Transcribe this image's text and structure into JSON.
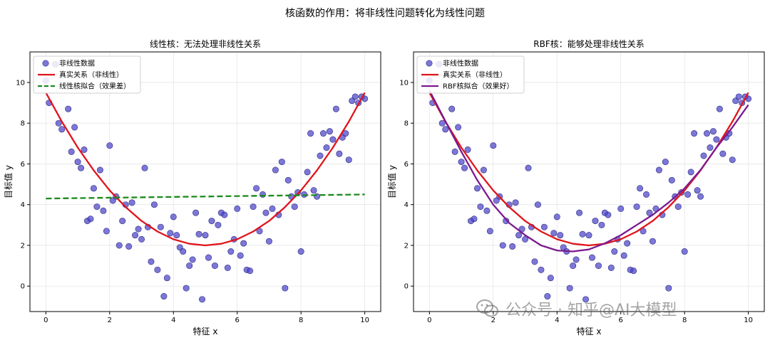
{
  "figure": {
    "suptitle": "核函数的作用：将非线性问题转化为线性问题"
  },
  "watermark": {
    "text": "公众号 · 知乎@AI大模型"
  },
  "colors": {
    "points": "#4b43c9",
    "true_curve": "#e0141b",
    "linear_fit": "#1a8a1a",
    "rbf_fit": "#7b1a8f",
    "grid": "#e6e6e6"
  },
  "chart_data": [
    {
      "type": "scatter",
      "title": "线性核：无法处理非线性关系",
      "xlabel": "特征 x",
      "ylabel": "目标值 y",
      "xlim": [
        -0.5,
        10.5
      ],
      "ylim": [
        -1.25,
        11.5
      ],
      "xticks": [
        0,
        2,
        4,
        6,
        8,
        10
      ],
      "yticks": [
        0,
        2,
        4,
        6,
        8,
        10
      ],
      "grid": true,
      "legend_position": "top-left",
      "legend": [
        "非线性数据",
        "真实关系（非线性）",
        "线性核拟合（效果差）"
      ],
      "scatter_points": [
        [
          0.0,
          10.1
        ],
        [
          0.1,
          9.0
        ],
        [
          0.3,
          10.9
        ],
        [
          0.4,
          8.0
        ],
        [
          0.5,
          7.7
        ],
        [
          0.7,
          8.7
        ],
        [
          0.8,
          6.6
        ],
        [
          0.9,
          7.8
        ],
        [
          1.0,
          6.1
        ],
        [
          1.1,
          5.8
        ],
        [
          1.2,
          6.7
        ],
        [
          1.3,
          3.2
        ],
        [
          1.4,
          3.3
        ],
        [
          1.5,
          4.8
        ],
        [
          1.6,
          3.9
        ],
        [
          1.7,
          5.7
        ],
        [
          1.8,
          3.7
        ],
        [
          1.9,
          2.7
        ],
        [
          2.0,
          6.9
        ],
        [
          2.1,
          4.2
        ],
        [
          2.2,
          4.4
        ],
        [
          2.3,
          2.0
        ],
        [
          2.4,
          3.2
        ],
        [
          2.5,
          4.0
        ],
        [
          2.6,
          1.95
        ],
        [
          2.7,
          4.1
        ],
        [
          2.8,
          2.5
        ],
        [
          2.9,
          2.8
        ],
        [
          3.0,
          2.3
        ],
        [
          3.1,
          5.8
        ],
        [
          3.2,
          2.9
        ],
        [
          3.3,
          1.2
        ],
        [
          3.4,
          4.0
        ],
        [
          3.5,
          0.8
        ],
        [
          3.6,
          2.9
        ],
        [
          3.7,
          -0.5
        ],
        [
          3.8,
          0.4
        ],
        [
          3.9,
          2.6
        ],
        [
          4.0,
          3.4
        ],
        [
          4.1,
          2.5
        ],
        [
          4.2,
          1.9
        ],
        [
          4.3,
          1.7
        ],
        [
          4.4,
          -0.1
        ],
        [
          4.5,
          1.0
        ],
        [
          4.6,
          1.3
        ],
        [
          4.7,
          3.6
        ],
        [
          4.8,
          2.55
        ],
        [
          4.9,
          -0.65
        ],
        [
          5.0,
          2.5
        ],
        [
          5.1,
          1.4
        ],
        [
          5.2,
          3.2
        ],
        [
          5.3,
          1.0
        ],
        [
          5.4,
          3.0
        ],
        [
          5.5,
          3.6
        ],
        [
          5.6,
          3.5
        ],
        [
          5.7,
          0.9
        ],
        [
          5.8,
          1.7
        ],
        [
          5.9,
          2.3
        ],
        [
          6.0,
          3.8
        ],
        [
          6.1,
          1.5
        ],
        [
          6.2,
          2.1
        ],
        [
          6.3,
          0.8
        ],
        [
          6.4,
          0.75
        ],
        [
          6.5,
          3.9
        ],
        [
          6.6,
          4.8
        ],
        [
          6.7,
          2.7
        ],
        [
          6.8,
          4.5
        ],
        [
          6.9,
          3.6
        ],
        [
          7.0,
          2.2
        ],
        [
          7.1,
          3.8
        ],
        [
          7.2,
          5.7
        ],
        [
          7.3,
          3.5
        ],
        [
          7.4,
          6.1
        ],
        [
          7.5,
          -0.1
        ],
        [
          7.6,
          5.2
        ],
        [
          7.7,
          4.4
        ],
        [
          7.8,
          3.9
        ],
        [
          7.9,
          4.6
        ],
        [
          8.0,
          1.7
        ],
        [
          8.1,
          4.5
        ],
        [
          8.2,
          5.6
        ],
        [
          8.3,
          7.5
        ],
        [
          8.4,
          4.7
        ],
        [
          8.5,
          4.4
        ],
        [
          8.6,
          6.4
        ],
        [
          8.7,
          7.5
        ],
        [
          8.8,
          6.8
        ],
        [
          8.9,
          7.6
        ],
        [
          9.0,
          7.2
        ],
        [
          9.1,
          8.7
        ],
        [
          9.2,
          6.5
        ],
        [
          9.3,
          7.3
        ],
        [
          9.4,
          7.5
        ],
        [
          9.5,
          6.2
        ],
        [
          9.6,
          9.1
        ],
        [
          9.7,
          9.3
        ],
        [
          9.8,
          9.0
        ],
        [
          9.9,
          9.3
        ],
        [
          10.0,
          9.2
        ]
      ],
      "series": [
        {
          "name": "真实关系（非线性）",
          "kind": "line",
          "style": "solid",
          "x": [
            0,
            0.5,
            1,
            1.5,
            2,
            2.5,
            3,
            3.5,
            4,
            4.5,
            5,
            5.5,
            6,
            6.5,
            7,
            7.5,
            8,
            8.5,
            9,
            9.5,
            10
          ],
          "y": [
            9.5,
            8.08,
            6.8,
            5.68,
            4.7,
            3.88,
            3.2,
            2.68,
            2.3,
            2.08,
            2.0,
            2.08,
            2.3,
            2.68,
            3.2,
            3.88,
            4.7,
            5.68,
            6.8,
            8.08,
            9.5
          ]
        },
        {
          "name": "线性核拟合（效果差）",
          "kind": "line",
          "style": "dashed",
          "x": [
            0,
            10
          ],
          "y": [
            4.3,
            4.5
          ]
        }
      ]
    },
    {
      "type": "scatter",
      "title": "RBF核：能够处理非线性关系",
      "xlabel": "特征 x",
      "ylabel": "目标值 y",
      "xlim": [
        -0.5,
        10.5
      ],
      "ylim": [
        -1.25,
        11.5
      ],
      "xticks": [
        0,
        2,
        4,
        6,
        8,
        10
      ],
      "yticks": [
        0,
        2,
        4,
        6,
        8,
        10
      ],
      "grid": true,
      "legend_position": "top-left",
      "legend": [
        "非线性数据",
        "真实关系（非线性）",
        "RBF核拟合（效果好）"
      ],
      "scatter_points": [
        [
          0.0,
          10.1
        ],
        [
          0.1,
          9.0
        ],
        [
          0.3,
          10.9
        ],
        [
          0.4,
          8.0
        ],
        [
          0.5,
          7.7
        ],
        [
          0.7,
          8.7
        ],
        [
          0.8,
          6.6
        ],
        [
          0.9,
          7.8
        ],
        [
          1.0,
          6.1
        ],
        [
          1.1,
          5.8
        ],
        [
          1.2,
          6.7
        ],
        [
          1.3,
          3.2
        ],
        [
          1.4,
          3.3
        ],
        [
          1.5,
          4.8
        ],
        [
          1.6,
          3.9
        ],
        [
          1.7,
          5.7
        ],
        [
          1.8,
          3.7
        ],
        [
          1.9,
          2.7
        ],
        [
          2.0,
          6.9
        ],
        [
          2.1,
          4.2
        ],
        [
          2.2,
          4.4
        ],
        [
          2.3,
          2.0
        ],
        [
          2.4,
          3.2
        ],
        [
          2.5,
          4.0
        ],
        [
          2.6,
          1.95
        ],
        [
          2.7,
          4.1
        ],
        [
          2.8,
          2.5
        ],
        [
          2.9,
          2.8
        ],
        [
          3.0,
          2.3
        ],
        [
          3.1,
          5.8
        ],
        [
          3.2,
          2.9
        ],
        [
          3.3,
          1.2
        ],
        [
          3.4,
          4.0
        ],
        [
          3.5,
          0.8
        ],
        [
          3.6,
          2.9
        ],
        [
          3.7,
          -0.5
        ],
        [
          3.8,
          0.4
        ],
        [
          3.9,
          2.6
        ],
        [
          4.0,
          3.4
        ],
        [
          4.1,
          2.5
        ],
        [
          4.2,
          1.9
        ],
        [
          4.3,
          1.7
        ],
        [
          4.4,
          -0.1
        ],
        [
          4.5,
          1.0
        ],
        [
          4.6,
          1.3
        ],
        [
          4.7,
          3.6
        ],
        [
          4.8,
          2.55
        ],
        [
          4.9,
          -0.65
        ],
        [
          5.0,
          2.5
        ],
        [
          5.1,
          1.4
        ],
        [
          5.2,
          3.2
        ],
        [
          5.3,
          1.0
        ],
        [
          5.4,
          3.0
        ],
        [
          5.5,
          3.6
        ],
        [
          5.6,
          3.5
        ],
        [
          5.7,
          0.9
        ],
        [
          5.8,
          1.7
        ],
        [
          5.9,
          2.3
        ],
        [
          6.0,
          3.8
        ],
        [
          6.1,
          1.5
        ],
        [
          6.2,
          2.1
        ],
        [
          6.3,
          0.8
        ],
        [
          6.4,
          0.75
        ],
        [
          6.5,
          3.9
        ],
        [
          6.6,
          4.8
        ],
        [
          6.7,
          2.7
        ],
        [
          6.8,
          4.5
        ],
        [
          6.9,
          3.6
        ],
        [
          7.0,
          2.2
        ],
        [
          7.1,
          3.8
        ],
        [
          7.2,
          5.7
        ],
        [
          7.3,
          3.5
        ],
        [
          7.4,
          6.1
        ],
        [
          7.5,
          -0.1
        ],
        [
          7.6,
          5.2
        ],
        [
          7.7,
          4.4
        ],
        [
          7.8,
          3.9
        ],
        [
          7.9,
          4.6
        ],
        [
          8.0,
          1.7
        ],
        [
          8.1,
          4.5
        ],
        [
          8.2,
          5.6
        ],
        [
          8.3,
          7.5
        ],
        [
          8.4,
          4.7
        ],
        [
          8.5,
          4.4
        ],
        [
          8.6,
          6.4
        ],
        [
          8.7,
          7.5
        ],
        [
          8.8,
          6.8
        ],
        [
          8.9,
          7.6
        ],
        [
          9.0,
          7.2
        ],
        [
          9.1,
          8.7
        ],
        [
          9.2,
          6.5
        ],
        [
          9.3,
          7.3
        ],
        [
          9.4,
          7.5
        ],
        [
          9.5,
          6.2
        ],
        [
          9.6,
          9.1
        ],
        [
          9.7,
          9.3
        ],
        [
          9.8,
          9.0
        ],
        [
          9.9,
          9.3
        ],
        [
          10.0,
          9.2
        ]
      ],
      "series": [
        {
          "name": "真实关系（非线性）",
          "kind": "line",
          "style": "solid",
          "x": [
            0,
            0.5,
            1,
            1.5,
            2,
            2.5,
            3,
            3.5,
            4,
            4.5,
            5,
            5.5,
            6,
            6.5,
            7,
            7.5,
            8,
            8.5,
            9,
            9.5,
            10
          ],
          "y": [
            9.5,
            8.08,
            6.8,
            5.68,
            4.7,
            3.88,
            3.2,
            2.68,
            2.3,
            2.08,
            2.0,
            2.08,
            2.3,
            2.68,
            3.2,
            3.88,
            4.7,
            5.68,
            6.8,
            8.08,
            9.5
          ]
        },
        {
          "name": "RBF核拟合（效果好）",
          "kind": "line",
          "style": "solid",
          "x": [
            0,
            0.5,
            1,
            1.5,
            2,
            2.5,
            3,
            3.5,
            4,
            4.5,
            5,
            5.5,
            6,
            6.5,
            7,
            7.5,
            8,
            8.5,
            9,
            9.5,
            10
          ],
          "y": [
            9.6,
            8.1,
            6.6,
            5.2,
            4.0,
            3.1,
            2.5,
            2.0,
            1.75,
            1.7,
            1.8,
            2.1,
            2.5,
            3.0,
            3.5,
            4.1,
            4.8,
            5.7,
            6.8,
            7.8,
            8.9
          ]
        }
      ]
    }
  ]
}
